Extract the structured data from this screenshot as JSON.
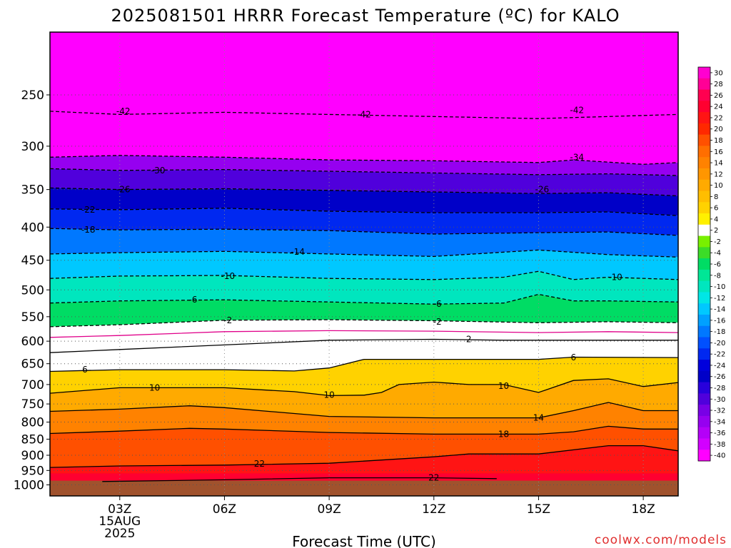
{
  "title": "2025081501 HRRR Forecast Temperature (ºC) for KALO",
  "xlabel": "Forecast Time (UTC)",
  "credit": "coolwx.com/models",
  "chart_data": {
    "type": "heatmap",
    "title": "2025081501 HRRR Forecast Temperature (ºC) for KALO",
    "xlabel": "Forecast Time (UTC)",
    "ylabel": "",
    "y_scale": "log",
    "y_reversed": true,
    "ylim": [
      1040,
      200
    ],
    "xlim_hours": [
      1,
      19
    ],
    "y_ticks": [
      250,
      300,
      350,
      400,
      450,
      500,
      550,
      600,
      650,
      700,
      750,
      800,
      850,
      900,
      950,
      1000
    ],
    "x_ticks": [
      {
        "hour": 3,
        "label": "03Z",
        "sublabel": [
          "15AUG",
          "2025"
        ]
      },
      {
        "hour": 6,
        "label": "06Z",
        "sublabel": []
      },
      {
        "hour": 9,
        "label": "09Z",
        "sublabel": []
      },
      {
        "hour": 12,
        "label": "12Z",
        "sublabel": []
      },
      {
        "hour": 15,
        "label": "15Z",
        "sublabel": []
      },
      {
        "hour": 18,
        "label": "18Z",
        "sublabel": []
      }
    ],
    "grid": true,
    "ground_color": "#a0522d",
    "colorbar": {
      "labels": [
        30,
        28,
        26,
        24,
        22,
        20,
        18,
        16,
        14,
        12,
        10,
        8,
        6,
        4,
        2,
        -2,
        -4,
        -6,
        -8,
        -10,
        -12,
        -14,
        -16,
        -18,
        -20,
        -22,
        -24,
        -26,
        -28,
        -30,
        -32,
        -34,
        -36,
        -38,
        -40
      ],
      "colors": [
        "#ff00d0",
        "#ff0096",
        "#ff0050",
        "#ff0030",
        "#ff1414",
        "#ff2800",
        "#ff5000",
        "#ff6e00",
        "#ff8200",
        "#ff9600",
        "#ffaa00",
        "#ffbe00",
        "#ffd200",
        "#fff000",
        "#ffffff",
        "#78f000",
        "#3cdc28",
        "#00dc64",
        "#00e696",
        "#00e6be",
        "#00e6e6",
        "#00c8ff",
        "#00a0ff",
        "#0078ff",
        "#0050ff",
        "#0028f0",
        "#0000dc",
        "#0000c8",
        "#2800dc",
        "#5000dc",
        "#7800e6",
        "#9600f0",
        "#b400f8",
        "#d200ff",
        "#ff00ff"
      ]
    },
    "series": [
      {
        "level": -42,
        "points": [
          [
            1,
            265
          ],
          [
            3,
            268
          ],
          [
            6,
            266
          ],
          [
            9,
            268
          ],
          [
            12,
            270
          ],
          [
            15,
            272
          ],
          [
            17,
            270
          ],
          [
            19,
            268
          ]
        ]
      },
      {
        "level": -34,
        "points": [
          [
            1,
            312
          ],
          [
            3,
            310
          ],
          [
            6,
            312
          ],
          [
            9,
            315
          ],
          [
            12,
            316
          ],
          [
            15,
            318
          ],
          [
            16,
            315
          ],
          [
            18,
            320
          ],
          [
            19,
            318
          ]
        ]
      },
      {
        "level": -30,
        "points": [
          [
            1,
            325
          ],
          [
            3,
            327
          ],
          [
            6,
            326
          ],
          [
            9,
            328
          ],
          [
            12,
            330
          ],
          [
            15,
            332
          ],
          [
            17,
            331
          ],
          [
            19,
            333
          ]
        ]
      },
      {
        "level": -26,
        "points": [
          [
            1,
            348
          ],
          [
            3,
            350
          ],
          [
            6,
            349
          ],
          [
            9,
            351
          ],
          [
            12,
            353
          ],
          [
            15,
            355
          ],
          [
            17,
            354
          ],
          [
            19,
            358
          ]
        ]
      },
      {
        "level": -22,
        "points": [
          [
            1,
            375
          ],
          [
            3,
            376
          ],
          [
            6,
            374
          ],
          [
            9,
            378
          ],
          [
            12,
            380
          ],
          [
            15,
            380
          ],
          [
            17,
            379
          ],
          [
            19,
            384
          ]
        ]
      },
      {
        "level": -18,
        "points": [
          [
            1,
            402
          ],
          [
            3,
            404
          ],
          [
            6,
            403
          ],
          [
            9,
            405
          ],
          [
            12,
            410
          ],
          [
            15,
            408
          ],
          [
            17,
            407
          ],
          [
            19,
            412
          ]
        ]
      },
      {
        "level": -14,
        "points": [
          [
            1,
            440
          ],
          [
            3,
            438
          ],
          [
            6,
            436
          ],
          [
            9,
            440
          ],
          [
            12,
            444
          ],
          [
            15,
            434
          ],
          [
            17,
            441
          ],
          [
            19,
            445
          ]
        ]
      },
      {
        "level": -10,
        "points": [
          [
            1,
            480
          ],
          [
            3,
            476
          ],
          [
            6,
            475
          ],
          [
            9,
            480
          ],
          [
            12,
            482
          ],
          [
            14,
            478
          ],
          [
            15,
            468
          ],
          [
            16,
            482
          ],
          [
            17,
            478
          ],
          [
            19,
            482
          ]
        ]
      },
      {
        "level": -6,
        "points": [
          [
            1,
            524
          ],
          [
            3,
            520
          ],
          [
            6,
            518
          ],
          [
            9,
            522
          ],
          [
            12,
            526
          ],
          [
            14,
            524
          ],
          [
            15,
            508
          ],
          [
            16,
            520
          ],
          [
            17,
            520
          ],
          [
            19,
            522
          ]
        ]
      },
      {
        "level": -2,
        "points": [
          [
            1,
            570
          ],
          [
            3,
            566
          ],
          [
            6,
            557
          ],
          [
            9,
            556
          ],
          [
            12,
            558
          ],
          [
            15,
            562
          ],
          [
            17,
            560
          ],
          [
            19,
            562
          ]
        ]
      },
      {
        "level": 0,
        "points": [
          [
            1,
            592
          ],
          [
            3,
            588
          ],
          [
            6,
            580
          ],
          [
            9,
            578
          ],
          [
            12,
            579
          ],
          [
            15,
            582
          ],
          [
            17,
            580
          ],
          [
            19,
            582
          ]
        ]
      },
      {
        "level": 2,
        "points": [
          [
            1,
            625
          ],
          [
            3,
            618
          ],
          [
            6,
            608
          ],
          [
            9,
            598
          ],
          [
            12,
            596
          ],
          [
            14,
            598
          ],
          [
            15,
            598
          ],
          [
            17,
            598
          ],
          [
            19,
            598
          ]
        ]
      },
      {
        "level": 6,
        "points": [
          [
            1,
            668
          ],
          [
            3,
            664
          ],
          [
            6,
            664
          ],
          [
            8,
            667
          ],
          [
            9,
            660
          ],
          [
            10,
            640
          ],
          [
            12,
            640
          ],
          [
            15,
            640
          ],
          [
            16,
            635
          ],
          [
            19,
            636
          ]
        ]
      },
      {
        "level": 10,
        "points": [
          [
            1,
            722
          ],
          [
            3,
            708
          ],
          [
            6,
            708
          ],
          [
            8,
            718
          ],
          [
            9,
            728
          ],
          [
            10,
            727
          ],
          [
            10.5,
            720
          ],
          [
            11,
            700
          ],
          [
            12,
            694
          ],
          [
            13,
            700
          ],
          [
            14,
            700
          ],
          [
            15,
            720
          ],
          [
            16,
            690
          ],
          [
            17,
            686
          ],
          [
            18,
            705
          ],
          [
            19,
            695
          ]
        ]
      },
      {
        "level": 14,
        "points": [
          [
            1,
            770
          ],
          [
            3,
            764
          ],
          [
            5,
            755
          ],
          [
            6,
            760
          ],
          [
            9,
            784
          ],
          [
            12,
            788
          ],
          [
            15,
            788
          ],
          [
            16,
            768
          ],
          [
            17,
            746
          ],
          [
            18,
            768
          ],
          [
            19,
            768
          ]
        ]
      },
      {
        "level": 18,
        "points": [
          [
            1,
            833
          ],
          [
            3,
            826
          ],
          [
            5,
            818
          ],
          [
            6,
            820
          ],
          [
            9,
            830
          ],
          [
            12,
            835
          ],
          [
            15,
            835
          ],
          [
            16,
            828
          ],
          [
            17,
            812
          ],
          [
            18,
            820
          ],
          [
            19,
            820
          ]
        ]
      },
      {
        "level": 22,
        "points": [
          [
            1,
            940
          ],
          [
            3,
            935
          ],
          [
            6,
            932
          ],
          [
            9,
            926
          ],
          [
            12,
            905
          ],
          [
            13,
            896
          ],
          [
            15,
            896
          ],
          [
            17,
            870
          ],
          [
            18,
            870
          ],
          [
            19,
            886
          ]
        ]
      },
      {
        "level": 22,
        "points": [
          [
            2.5,
            988
          ],
          [
            6,
            982
          ],
          [
            9,
            975
          ],
          [
            12,
            975
          ],
          [
            13.8,
            978
          ]
        ]
      }
    ],
    "contour_labels": [
      {
        "text": "-42",
        "x": 3.1,
        "y": 265
      },
      {
        "text": "-42",
        "x": 10.0,
        "y": 268
      },
      {
        "text": "-42",
        "x": 16.1,
        "y": 264
      },
      {
        "text": "-34",
        "x": 16.1,
        "y": 312
      },
      {
        "text": "-30",
        "x": 4.1,
        "y": 327
      },
      {
        "text": "-26",
        "x": 3.1,
        "y": 350
      },
      {
        "text": "-26",
        "x": 15.1,
        "y": 350
      },
      {
        "text": "-22",
        "x": 2.1,
        "y": 376
      },
      {
        "text": "-18",
        "x": 2.1,
        "y": 404
      },
      {
        "text": "-14",
        "x": 8.1,
        "y": 437
      },
      {
        "text": "-10",
        "x": 6.1,
        "y": 476
      },
      {
        "text": "-10",
        "x": 17.2,
        "y": 478
      },
      {
        "text": "-6",
        "x": 5.1,
        "y": 518
      },
      {
        "text": "-6",
        "x": 12.1,
        "y": 526
      },
      {
        "text": "-2",
        "x": 6.1,
        "y": 557
      },
      {
        "text": "-2",
        "x": 12.1,
        "y": 560
      },
      {
        "text": "2",
        "x": 13.0,
        "y": 596
      },
      {
        "text": "6",
        "x": 2.0,
        "y": 664
      },
      {
        "text": "6",
        "x": 16.0,
        "y": 636
      },
      {
        "text": "10",
        "x": 4.0,
        "y": 708
      },
      {
        "text": "10",
        "x": 9.0,
        "y": 726
      },
      {
        "text": "10",
        "x": 14.0,
        "y": 704
      },
      {
        "text": "14",
        "x": 15.0,
        "y": 788
      },
      {
        "text": "18",
        "x": 14.0,
        "y": 835
      },
      {
        "text": "22",
        "x": 7.0,
        "y": 928
      },
      {
        "text": "22",
        "x": 12.0,
        "y": 975
      }
    ]
  }
}
